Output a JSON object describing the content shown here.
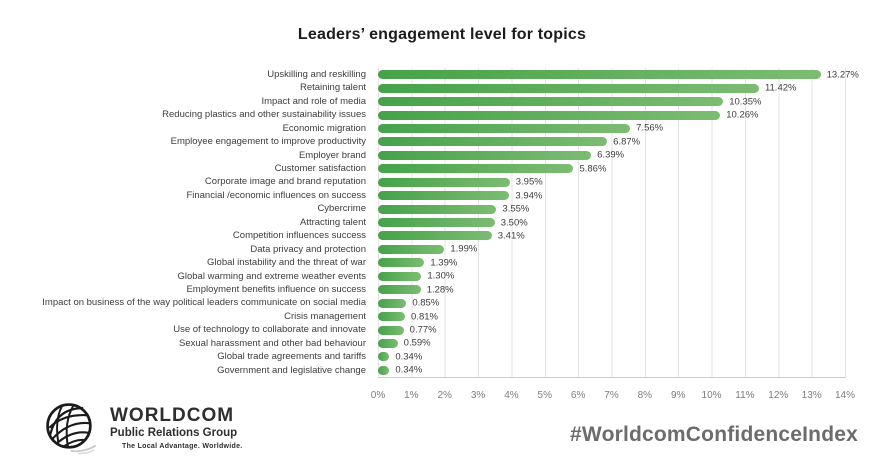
{
  "title": "Leaders’ engagement level for topics",
  "chart_data": {
    "type": "bar",
    "orientation": "horizontal",
    "title": "Leaders’ engagement level for topics",
    "xlabel": "",
    "ylabel": "",
    "xlim": [
      0,
      14
    ],
    "grid": true,
    "bar_color_start": "#46a24a",
    "bar_color_end": "#7cbc72",
    "categories": [
      "Upskilling and reskilling",
      "Retaining talent",
      "Impact and role of media",
      "Reducing plastics and other sustainability issues",
      "Economic migration",
      "Employee engagement to improve productivity",
      "Employer brand",
      "Customer satisfaction",
      "Corporate image and brand reputation",
      "Financial /economic influences on success",
      "Cybercrime",
      "Attracting talent",
      "Competition influences success",
      "Data privacy and protection",
      "Global instability and the threat of war",
      "Global warming and extreme weather events",
      "Employment benefits influence on success",
      "Impact on business of the way political leaders communicate on social media",
      "Crisis management",
      "Use of technology to collaborate and innovate",
      "Sexual harassment and other bad behaviour",
      "Global trade agreements and tariffs",
      "Government and legislative change"
    ],
    "values": [
      13.27,
      11.42,
      10.35,
      10.26,
      7.56,
      6.87,
      6.39,
      5.86,
      3.95,
      3.94,
      3.55,
      3.5,
      3.41,
      1.99,
      1.39,
      1.3,
      1.28,
      0.85,
      0.81,
      0.77,
      0.59,
      0.34,
      0.34
    ],
    "value_labels": [
      "13.27%",
      "11.42%",
      "10.35%",
      "10.26%",
      "7.56%",
      "6.87%",
      "6.39%",
      "5.86%",
      "3.95%",
      "3.94%",
      "3.55%",
      "3.50%",
      "3.41%",
      "1.99%",
      "1.39%",
      "1.30%",
      "1.28%",
      "0.85%",
      "0.81%",
      "0.77%",
      "0.59%",
      "0.34%",
      "0.34%"
    ],
    "x_ticks": [
      "0%",
      "1%",
      "2%",
      "3%",
      "4%",
      "5%",
      "6%",
      "7%",
      "8%",
      "9%",
      "10%",
      "11%",
      "12%",
      "13%",
      "14%"
    ]
  },
  "footer": {
    "logo": {
      "name": "WORLDCOM",
      "subtitle": "Public Relations Group",
      "tagline": "The Local Advantage. Worldwide."
    },
    "hashtag": "#WorldcomConfidenceIndex"
  }
}
